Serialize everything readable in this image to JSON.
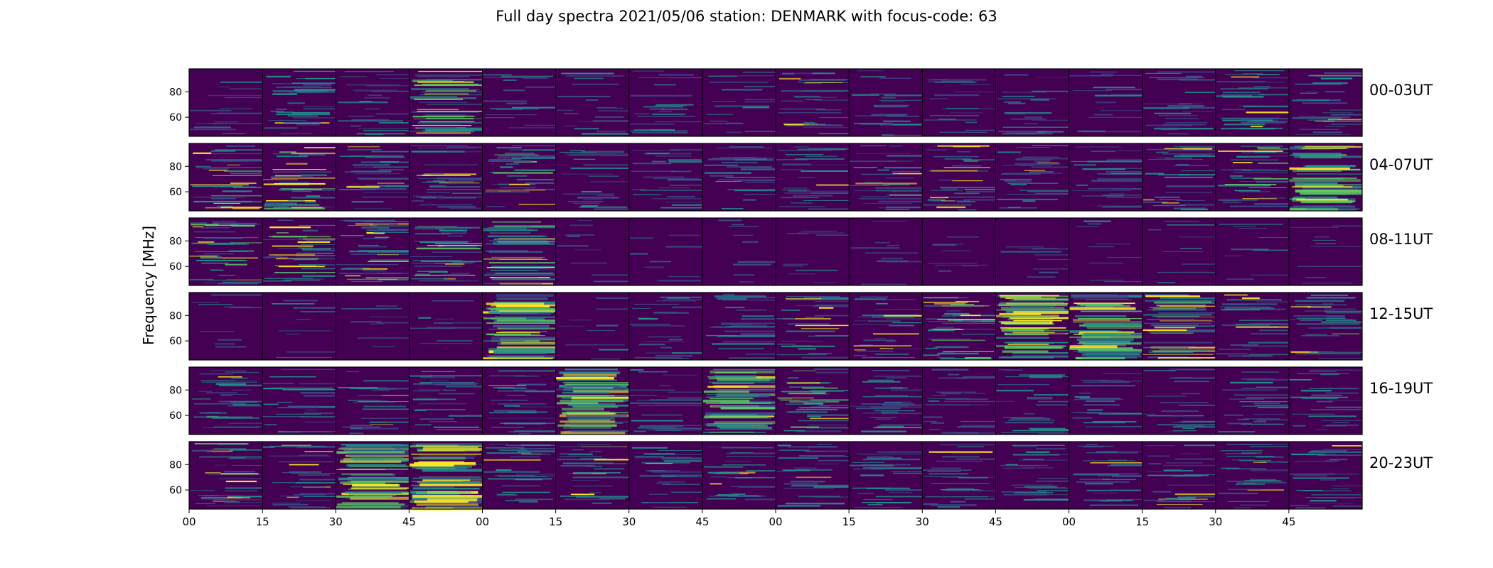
{
  "chart_data": {
    "type": "heatmap",
    "title": "Full day spectra 2021/05/06 station: DENMARK with focus-code: 63",
    "ylabel": "Frequency [MHz]",
    "xlabel": "",
    "ylim": [
      45,
      98
    ],
    "y_ticks": [
      "80",
      "60"
    ],
    "x_ticks": [
      "00",
      "15",
      "30",
      "45",
      "00",
      "15",
      "30",
      "45",
      "00",
      "15",
      "30",
      "45",
      "00",
      "15",
      "30",
      "45"
    ],
    "colormap": [
      "#440154",
      "#3b528b",
      "#21918c",
      "#5ec962",
      "#fde725"
    ],
    "segments_per_row": 16,
    "segment_minutes": 15,
    "rows": [
      {
        "label": "00-03UT",
        "activity": [
          0.15,
          0.45,
          0.3,
          0.7,
          0.2,
          0.2,
          0.25,
          0.2,
          0.4,
          0.25,
          0.2,
          0.25,
          0.15,
          0.3,
          0.45,
          0.4
        ]
      },
      {
        "label": "04-07UT",
        "activity": [
          0.45,
          0.55,
          0.4,
          0.4,
          0.45,
          0.3,
          0.3,
          0.35,
          0.35,
          0.4,
          0.45,
          0.4,
          0.35,
          0.45,
          0.5,
          0.75
        ]
      },
      {
        "label": "08-11UT",
        "activity": [
          0.55,
          0.55,
          0.6,
          0.5,
          0.7,
          0.05,
          0.05,
          0.05,
          0.05,
          0.05,
          0.05,
          0.05,
          0.05,
          0.05,
          0.05,
          0.05
        ]
      },
      {
        "label": "12-15UT",
        "activity": [
          0.05,
          0.05,
          0.05,
          0.05,
          0.8,
          0.05,
          0.3,
          0.35,
          0.4,
          0.4,
          0.6,
          0.85,
          0.8,
          0.65,
          0.4,
          0.45
        ]
      },
      {
        "label": "16-19UT",
        "activity": [
          0.45,
          0.35,
          0.35,
          0.35,
          0.35,
          0.85,
          0.3,
          0.8,
          0.6,
          0.35,
          0.3,
          0.3,
          0.3,
          0.3,
          0.3,
          0.3
        ]
      },
      {
        "label": "20-23UT",
        "activity": [
          0.45,
          0.4,
          0.85,
          0.9,
          0.4,
          0.4,
          0.35,
          0.4,
          0.35,
          0.35,
          0.35,
          0.35,
          0.35,
          0.35,
          0.35,
          0.35
        ]
      }
    ]
  }
}
